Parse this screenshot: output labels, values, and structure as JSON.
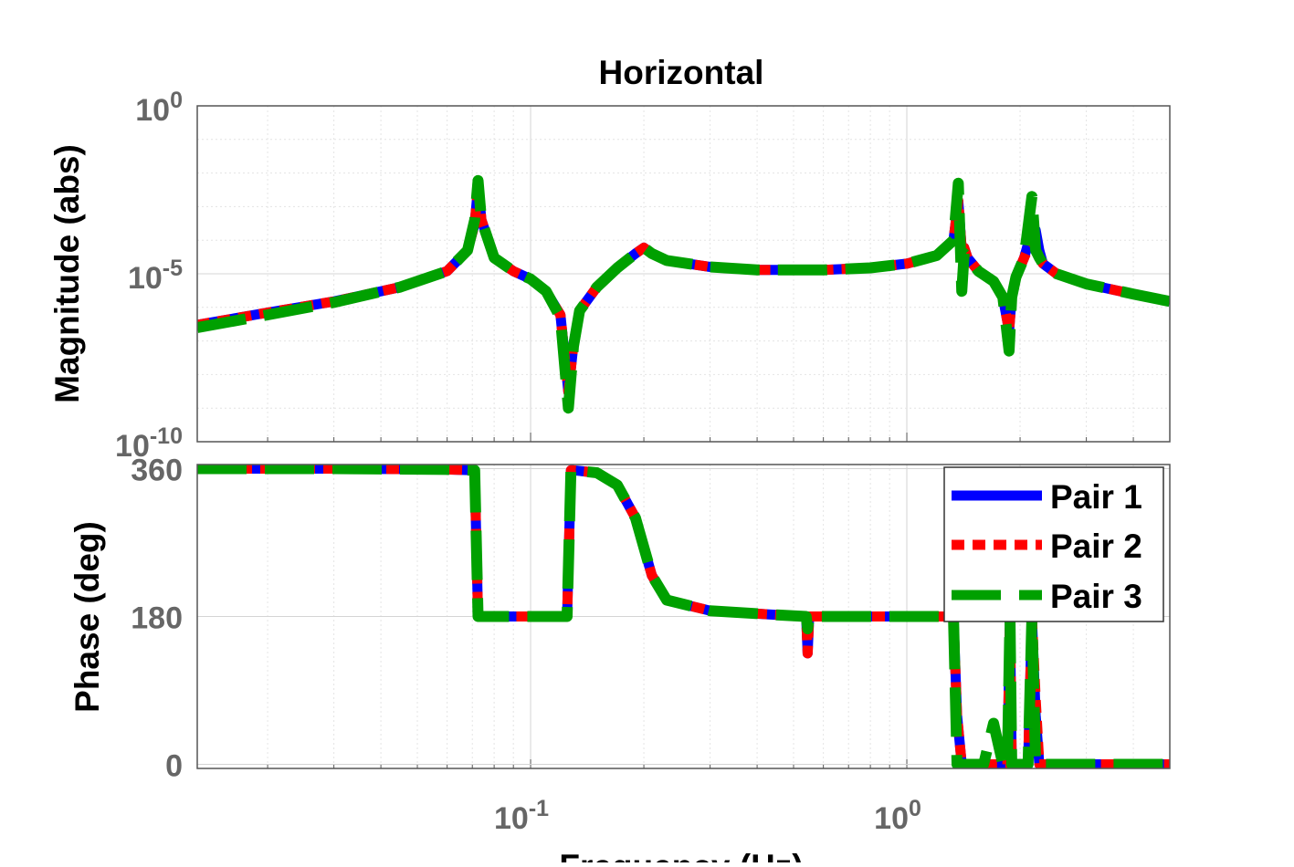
{
  "title": "Horizontal",
  "xlabel": "Frequency  (Hz)",
  "xticks": [
    {
      "value": 0.1,
      "base": "10",
      "exp": "-1"
    },
    {
      "value": 1,
      "base": "10",
      "exp": "0"
    }
  ],
  "colors": {
    "pair1": "#0000ff",
    "pair2": "#ff0000",
    "pair3": "#00a000",
    "axes": "#555555",
    "grid": "#d9d9d9"
  },
  "legend": {
    "location": "top-right",
    "entries": [
      "Pair 1",
      "Pair 2",
      "Pair 3"
    ]
  },
  "chart_data": [
    {
      "type": "line",
      "ylabel": "Magnitude (abs)",
      "xscale": "log",
      "yscale": "log",
      "xlim": [
        0.013,
        5.0
      ],
      "ylim": [
        1e-10,
        1
      ],
      "grid": true,
      "yticks": [
        {
          "value": 1,
          "base": "10",
          "exp": "0"
        },
        {
          "value": 1e-05,
          "base": "10",
          "exp": "-5"
        },
        {
          "value": 1e-10,
          "base": "10",
          "exp": "-10"
        }
      ],
      "series": [
        {
          "name": "Pair 1",
          "x": [
            0.013,
            0.02,
            0.03,
            0.045,
            0.06,
            0.068,
            0.071,
            0.0725,
            0.074,
            0.08,
            0.09,
            0.1,
            0.11,
            0.12,
            0.126,
            0.13,
            0.135,
            0.15,
            0.17,
            0.19,
            0.2,
            0.21,
            0.23,
            0.3,
            0.4,
            0.5,
            0.55,
            0.6,
            0.8,
            1.0,
            1.2,
            1.33,
            1.37,
            1.4,
            1.42,
            1.45,
            1.55,
            1.7,
            1.8,
            1.87,
            1.9,
            1.95,
            2.05,
            2.15,
            2.2,
            2.25,
            2.3,
            2.5,
            3.0,
            4.0,
            5.0
          ],
          "y": [
            3e-07,
            7e-07,
            1.5e-06,
            4e-06,
            1.2e-05,
            5e-05,
            0.0003,
            0.004,
            0.0004,
            3e-05,
            1.2e-05,
            7e-06,
            3e-06,
            6e-07,
            3e-09,
            8e-08,
            8e-07,
            4e-06,
            1.5e-05,
            4e-05,
            6e-05,
            4e-05,
            2.5e-05,
            1.6e-05,
            1.3e-05,
            1.3e-05,
            1.3e-05,
            1.3e-05,
            1.5e-05,
            2e-05,
            3.5e-05,
            0.0001,
            0.0015,
            5e-05,
            6e-05,
            3e-05,
            1.2e-05,
            6e-06,
            2e-06,
            2e-07,
            2e-06,
            8e-06,
            3e-05,
            0.0002,
            0.0002,
            5e-05,
            2e-05,
            1e-05,
            5e-06,
            2.5e-06,
            1.5e-06
          ]
        },
        {
          "name": "Pair 2",
          "x": [
            0.013,
            0.02,
            0.03,
            0.045,
            0.06,
            0.068,
            0.071,
            0.0725,
            0.074,
            0.08,
            0.09,
            0.1,
            0.11,
            0.12,
            0.126,
            0.13,
            0.135,
            0.15,
            0.17,
            0.19,
            0.2,
            0.21,
            0.23,
            0.3,
            0.4,
            0.5,
            0.55,
            0.6,
            0.8,
            1.0,
            1.2,
            1.33,
            1.37,
            1.4,
            1.42,
            1.45,
            1.55,
            1.7,
            1.8,
            1.87,
            1.9,
            1.95,
            2.05,
            2.15,
            2.2,
            2.25,
            2.3,
            2.5,
            3.0,
            4.0,
            5.0
          ],
          "y": [
            3e-07,
            7e-07,
            1.5e-06,
            4e-06,
            1.2e-05,
            5e-05,
            0.0003,
            0.004,
            0.0004,
            3e-05,
            1.2e-05,
            7e-06,
            3e-06,
            6e-07,
            3e-09,
            8e-08,
            8e-07,
            4e-06,
            1.5e-05,
            4e-05,
            6e-05,
            4e-05,
            2.5e-05,
            1.6e-05,
            1.3e-05,
            1.3e-05,
            1.3e-05,
            1.3e-05,
            1.5e-05,
            2e-05,
            3.5e-05,
            0.0001,
            0.0015,
            5e-05,
            6e-05,
            3e-05,
            1.2e-05,
            6e-06,
            2e-06,
            2e-07,
            2e-06,
            8e-06,
            3e-05,
            0.0001,
            6e-05,
            3e-05,
            2e-05,
            1e-05,
            5e-06,
            2.5e-06,
            1.5e-06
          ]
        },
        {
          "name": "Pair 3",
          "x": [
            0.013,
            0.02,
            0.03,
            0.045,
            0.06,
            0.068,
            0.071,
            0.0725,
            0.074,
            0.08,
            0.09,
            0.1,
            0.11,
            0.12,
            0.126,
            0.13,
            0.135,
            0.15,
            0.17,
            0.19,
            0.2,
            0.21,
            0.23,
            0.3,
            0.4,
            0.5,
            0.55,
            0.6,
            0.8,
            1.0,
            1.2,
            1.33,
            1.37,
            1.4,
            1.42,
            1.45,
            1.55,
            1.7,
            1.8,
            1.87,
            1.9,
            1.95,
            2.05,
            2.15,
            2.2,
            2.25,
            2.3,
            2.5,
            3.0,
            4.0,
            5.0
          ],
          "y": [
            2.5e-07,
            6e-07,
            1.4e-06,
            4e-06,
            1.2e-05,
            5e-05,
            0.0004,
            0.006,
            0.0004,
            3e-05,
            1.2e-05,
            7e-06,
            3e-06,
            5e-07,
            1e-09,
            7e-08,
            8e-07,
            4e-06,
            1.5e-05,
            4e-05,
            6e-05,
            4e-05,
            2.5e-05,
            1.6e-05,
            1.3e-05,
            1.3e-05,
            1.3e-05,
            1.3e-05,
            1.5e-05,
            2e-05,
            3.5e-05,
            0.0001,
            0.005,
            3e-06,
            4e-05,
            3e-05,
            1.2e-05,
            6e-06,
            2e-06,
            5e-08,
            2e-06,
            8e-06,
            3e-05,
            0.002,
            5e-05,
            3e-05,
            2e-05,
            1e-05,
            5e-06,
            2.5e-06,
            1.5e-06
          ]
        }
      ]
    },
    {
      "type": "line",
      "ylabel": "Phase (deg)",
      "xscale": "log",
      "xlim": [
        0.013,
        5.0
      ],
      "ylim": [
        -5,
        365
      ],
      "grid": true,
      "yticks": [
        0,
        180,
        360
      ],
      "series": [
        {
          "name": "Pair 1",
          "x": [
            0.013,
            0.03,
            0.06,
            0.071,
            0.0725,
            0.074,
            0.1,
            0.125,
            0.128,
            0.13,
            0.15,
            0.17,
            0.19,
            0.21,
            0.23,
            0.3,
            0.45,
            0.54,
            0.545,
            0.55,
            0.555,
            0.56,
            0.6,
            0.8,
            1.0,
            1.2,
            1.3,
            1.33,
            1.36,
            1.4,
            1.5,
            1.6,
            1.7,
            1.8,
            1.85,
            1.88,
            1.9,
            2.0,
            2.1,
            2.15,
            2.2,
            2.25,
            2.3,
            3.0,
            4.0,
            5.0
          ],
          "y": [
            360,
            360,
            359,
            358,
            180,
            180,
            180,
            180,
            358,
            358,
            355,
            340,
            300,
            230,
            200,
            187,
            182,
            180,
            135,
            180,
            180,
            180,
            180,
            180,
            180,
            180,
            180,
            180,
            60,
            0,
            0,
            0,
            0,
            0,
            0,
            180,
            0,
            0,
            0,
            180,
            60,
            0,
            0,
            0,
            0,
            0
          ]
        },
        {
          "name": "Pair 2",
          "x": [
            0.013,
            0.03,
            0.06,
            0.071,
            0.0725,
            0.074,
            0.1,
            0.125,
            0.128,
            0.13,
            0.15,
            0.17,
            0.19,
            0.21,
            0.23,
            0.3,
            0.45,
            0.54,
            0.545,
            0.55,
            0.555,
            0.56,
            0.6,
            0.8,
            1.0,
            1.2,
            1.3,
            1.33,
            1.36,
            1.4,
            1.5,
            1.6,
            1.7,
            1.8,
            1.85,
            1.88,
            1.9,
            2.0,
            2.1,
            2.15,
            2.2,
            2.25,
            2.3,
            3.0,
            4.0,
            5.0
          ],
          "y": [
            360,
            360,
            359,
            358,
            180,
            180,
            180,
            180,
            358,
            358,
            355,
            340,
            300,
            230,
            200,
            187,
            182,
            180,
            135,
            180,
            180,
            180,
            180,
            180,
            180,
            180,
            180,
            180,
            60,
            0,
            0,
            0,
            0,
            0,
            0,
            180,
            0,
            0,
            0,
            180,
            80,
            0,
            0,
            0,
            0,
            0
          ]
        },
        {
          "name": "Pair 3",
          "x": [
            0.013,
            0.03,
            0.06,
            0.071,
            0.0725,
            0.074,
            0.1,
            0.125,
            0.128,
            0.13,
            0.15,
            0.17,
            0.19,
            0.21,
            0.23,
            0.3,
            0.45,
            0.54,
            0.545,
            0.55,
            0.555,
            0.56,
            0.6,
            0.8,
            1.0,
            1.2,
            1.3,
            1.33,
            1.36,
            1.4,
            1.5,
            1.6,
            1.7,
            1.8,
            1.85,
            1.88,
            1.9,
            2.0,
            2.1,
            2.15,
            2.2,
            2.25,
            2.3,
            3.0,
            4.0,
            5.0
          ],
          "y": [
            360,
            360,
            359,
            358,
            180,
            180,
            180,
            180,
            358,
            358,
            355,
            340,
            300,
            230,
            200,
            187,
            182,
            180,
            165,
            180,
            180,
            180,
            180,
            180,
            180,
            180,
            180,
            180,
            0,
            0,
            0,
            0,
            50,
            0,
            0,
            180,
            0,
            0,
            0,
            180,
            0,
            0,
            0,
            0,
            0,
            0
          ]
        }
      ]
    }
  ]
}
